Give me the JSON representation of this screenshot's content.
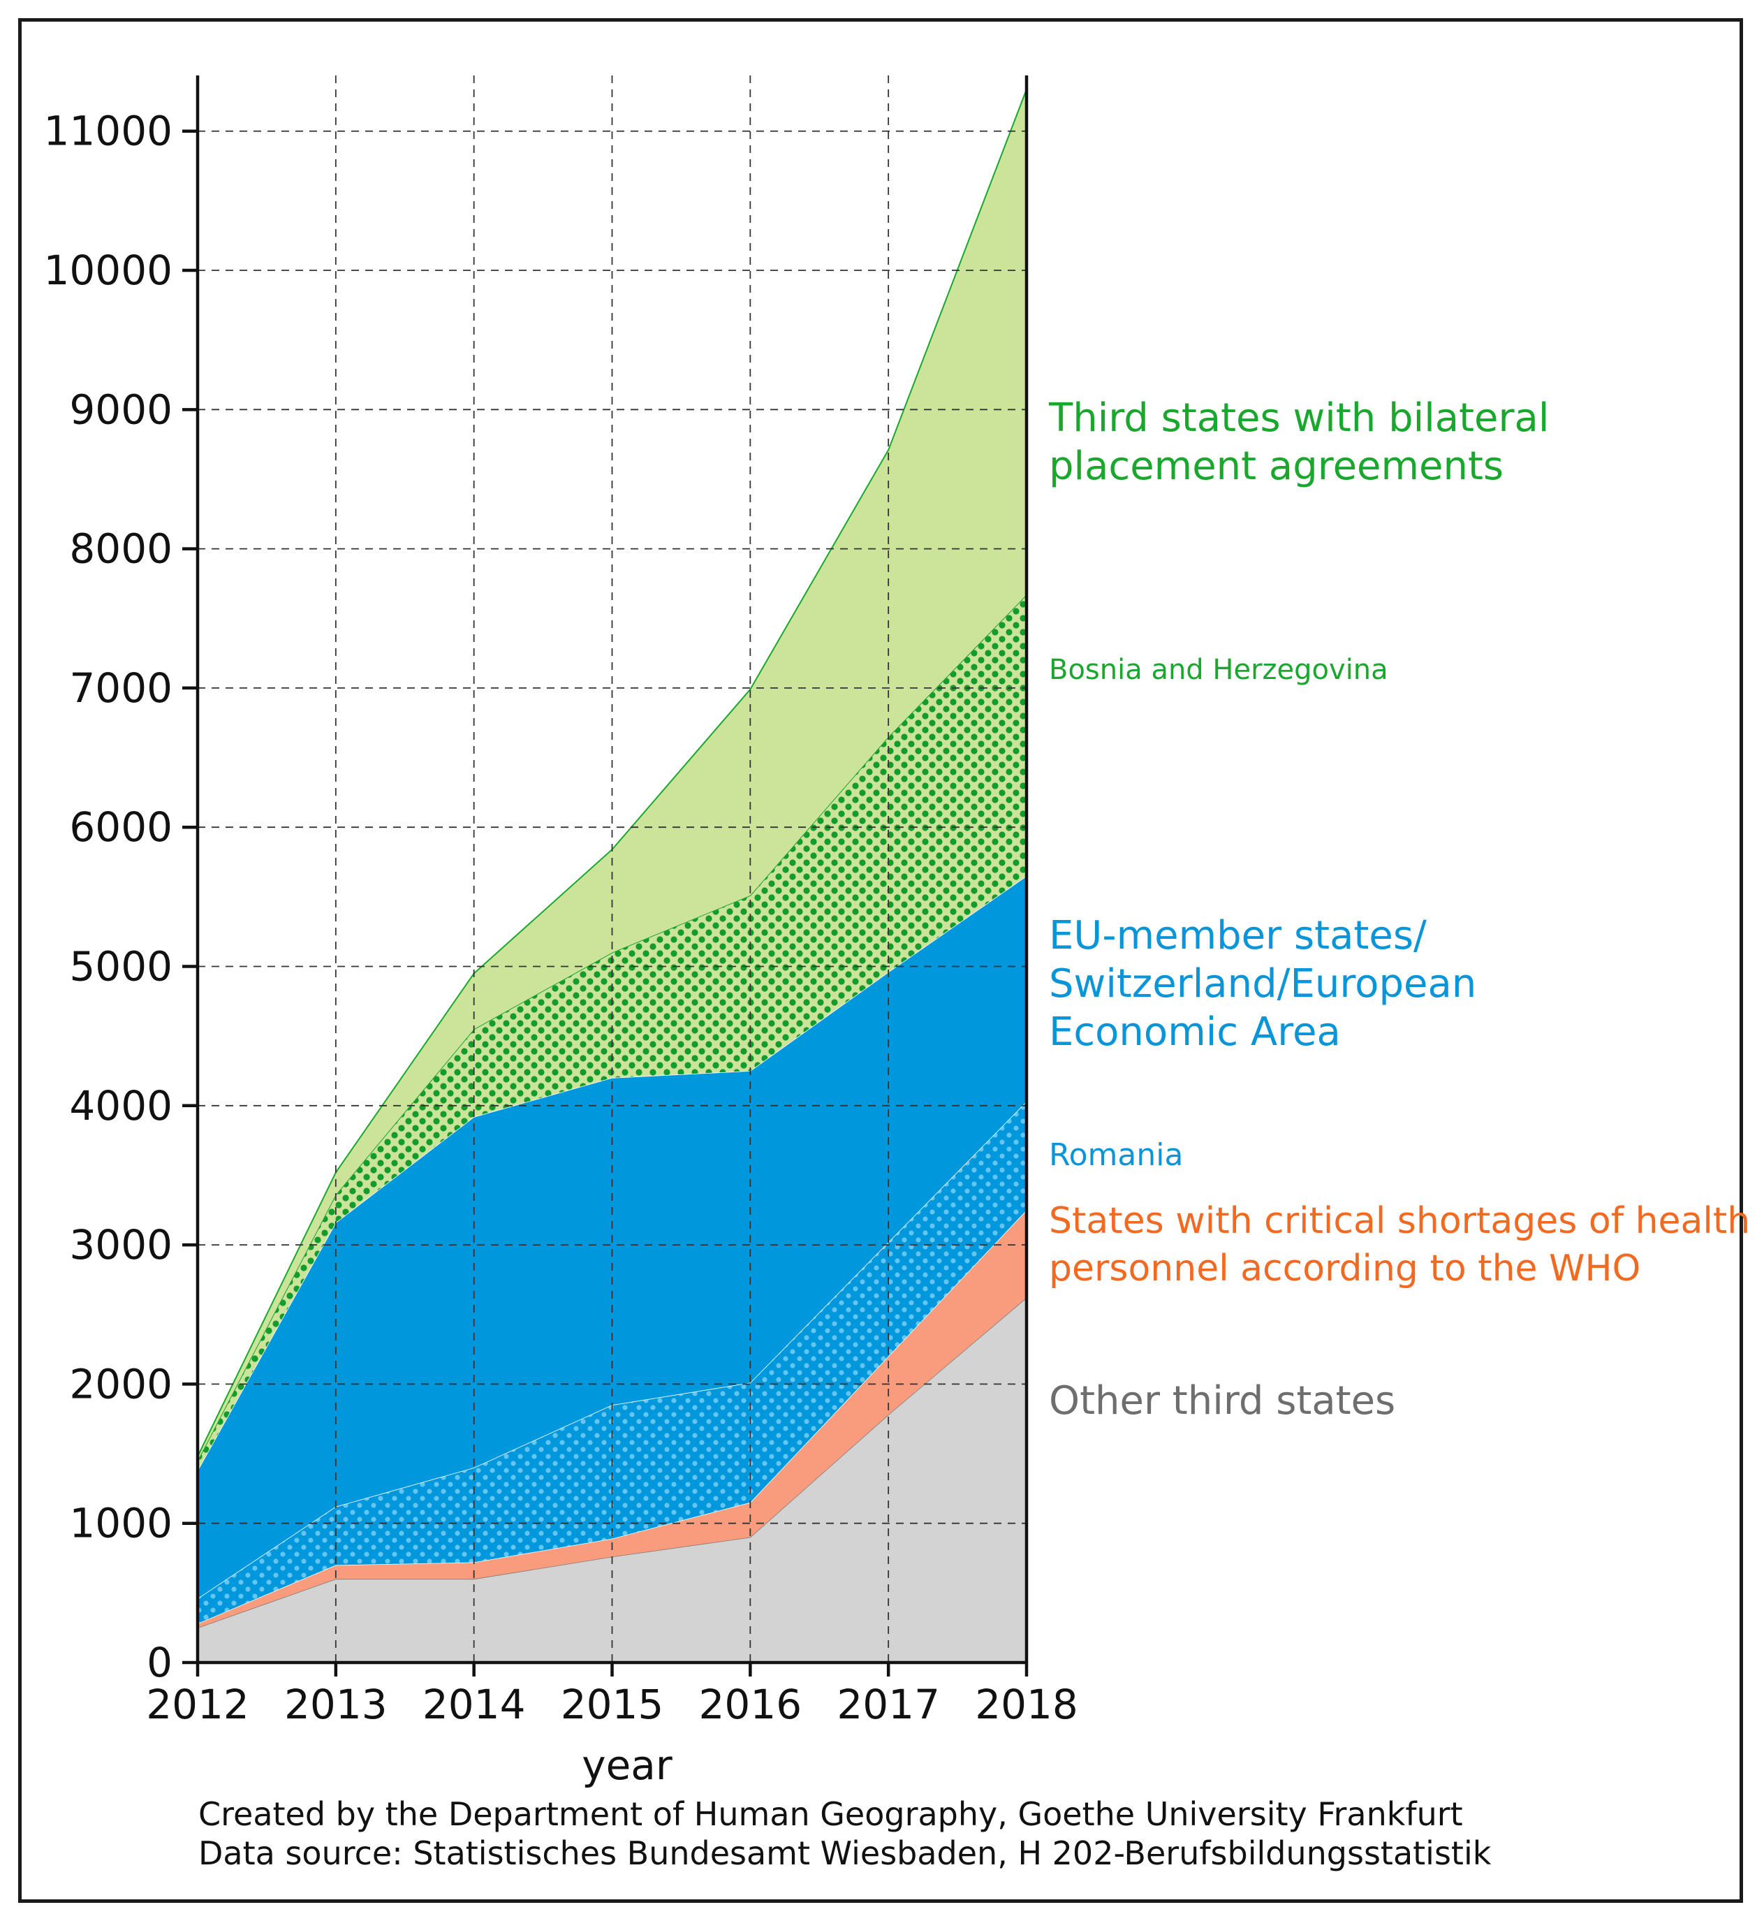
{
  "chart_data": {
    "type": "area",
    "stacked": true,
    "categories": [
      "2012",
      "2013",
      "2014",
      "2015",
      "2016",
      "2017",
      "2018"
    ],
    "xlabel": "year",
    "ylabel": "",
    "ylim": [
      0,
      11400
    ],
    "yticks": [
      0,
      1000,
      2000,
      3000,
      4000,
      5000,
      6000,
      7000,
      8000,
      9000,
      10000,
      11000
    ],
    "ytick_labels": [
      "0",
      "1000",
      "2000",
      "3000",
      "4000",
      "5000",
      "6000",
      "7000",
      "8000",
      "9000",
      "10000",
      "11000"
    ],
    "grid": true,
    "series": [
      {
        "key": "other",
        "name": "Other third states",
        "values": [
          250,
          600,
          600,
          760,
          900,
          1780,
          2620
        ],
        "color": "#d3d3d3",
        "label_color": "#6e6e6e",
        "pattern": false
      },
      {
        "key": "who",
        "name": "States with critical shortages of health personnel according to the WHO",
        "values": [
          30,
          100,
          120,
          130,
          250,
          420,
          630
        ],
        "color": "#f99b7d",
        "label_color": "#f26a21",
        "pattern": false
      },
      {
        "key": "romania",
        "name": "Romania",
        "values": [
          180,
          420,
          680,
          960,
          860,
          820,
          780
        ],
        "color": "#0097dc",
        "label_color": "#0a95d9",
        "pattern": true
      },
      {
        "key": "eu",
        "name": "EU-member states/ Switzerland/European Economic Area",
        "values": [
          920,
          2040,
          2520,
          2350,
          2240,
          1940,
          1620
        ],
        "color": "#0097dc",
        "label_color": "#0a95d9",
        "pattern": false
      },
      {
        "key": "bosnia",
        "name": "Bosnia and Herzegovina",
        "values": [
          70,
          200,
          630,
          900,
          1260,
          1690,
          2020
        ],
        "color": "#cce39a",
        "label_color": "#1aa72e",
        "pattern": true
      },
      {
        "key": "third",
        "name": "Third states with bilateral placement agreements",
        "values": [
          30,
          160,
          400,
          740,
          1480,
          2060,
          3630
        ],
        "color": "#cce39a",
        "label_color": "#1aa72e",
        "pattern": false
      }
    ]
  },
  "legend": {
    "third_line1": "Third states with bilateral",
    "third_line2": "placement agreements",
    "bosnia": "Bosnia and Herzegovina",
    "eu_line1": "EU-member states/",
    "eu_line2": "Switzerland/European",
    "eu_line3": "Economic Area",
    "romania": "Romania",
    "who_line1": "States with critical shortages of health",
    "who_line2": "personnel according to the WHO",
    "other": "Other third states"
  },
  "footer": {
    "line1": "Created by the Department of Human Geography, Goethe University Frankfurt",
    "line2": "Data source: Statistisches Bundesamt Wiesbaden, H 202-Berufsbildungsstatistik"
  },
  "colors": {
    "green_edge": "#1aa72e",
    "dot_green": "#139b2c",
    "dot_blue": "#63c6f1",
    "grid": "#333333"
  }
}
